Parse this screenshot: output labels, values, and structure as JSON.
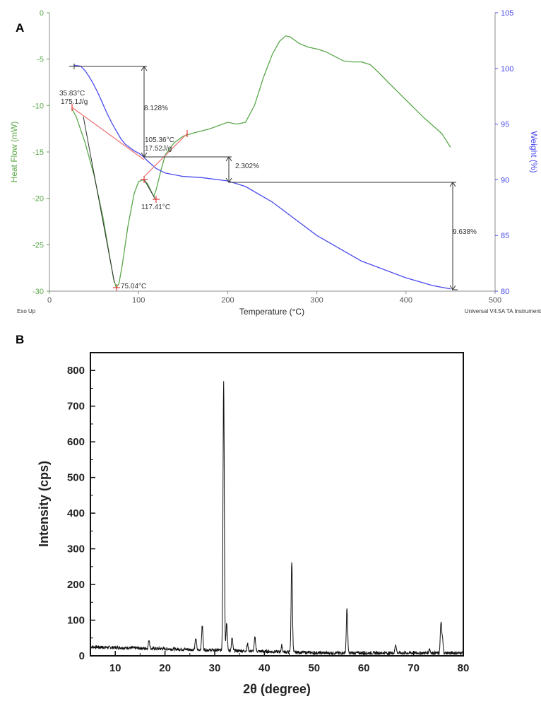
{
  "colors": {
    "heat_flow": "#5aa84a",
    "weight": "#4a4aee",
    "integration": "#f07070",
    "annotation": "#333333",
    "xrd": "#111111",
    "axis_a": "#8c8c8c"
  },
  "chart_data": [
    {
      "type": "line",
      "panel_label": "A",
      "xlabel": "Temperature (°C)",
      "ylabel_left": "Heat Flow (mW)",
      "ylabel_right": "Weight (%)",
      "xlim": [
        0,
        500
      ],
      "ylim_left": [
        -30,
        0
      ],
      "ylim_right": [
        80,
        105
      ],
      "x_ticks": [
        "0",
        "100",
        "200",
        "300",
        "400",
        "500"
      ],
      "y_left_ticks": [
        "0",
        "-5",
        "-10",
        "-15",
        "-20",
        "-25",
        "-30"
      ],
      "y_right_ticks": [
        "105",
        "100",
        "95",
        "90",
        "85",
        "80"
      ],
      "footer_left": "Exo Up",
      "footer_right": "Universal V4.5A TA Instrument",
      "series": [
        {
          "axis": "left",
          "x": [
            25,
            30,
            40,
            50,
            60,
            68,
            72,
            75,
            78,
            82,
            88,
            95,
            100,
            105,
            110,
            115,
            117,
            120,
            125,
            130,
            140,
            150,
            160,
            180,
            200,
            210,
            220,
            230,
            240,
            250,
            258,
            265,
            270,
            280,
            290,
            300,
            310,
            320,
            330,
            340,
            350,
            360,
            370,
            380,
            400,
            420,
            440,
            450
          ],
          "values": [
            -10.3,
            -11.2,
            -14,
            -17.5,
            -22,
            -26.5,
            -28.7,
            -29.6,
            -29.2,
            -27,
            -23,
            -19.5,
            -18.2,
            -18,
            -18.4,
            -19.4,
            -19.8,
            -19,
            -17,
            -15.3,
            -14,
            -13.3,
            -13,
            -12.5,
            -11.8,
            -12,
            -11.8,
            -10,
            -7,
            -4.5,
            -3.1,
            -2.5,
            -2.6,
            -3.3,
            -3.7,
            -3.9,
            -4.2,
            -4.7,
            -5.2,
            -5.3,
            -5.3,
            -5.6,
            -6.5,
            -7.5,
            -9.4,
            -11.3,
            -13,
            -14.5
          ]
        },
        {
          "axis": "right",
          "x": [
            27,
            35,
            40,
            45,
            50,
            55,
            60,
            65,
            70,
            75,
            80,
            85,
            90,
            95,
            100,
            105,
            110,
            120,
            130,
            150,
            170,
            200,
            220,
            250,
            300,
            350,
            400,
            430,
            450
          ],
          "values": [
            100.3,
            100.2,
            99.8,
            99.2,
            98.5,
            97.7,
            96.8,
            95.9,
            95.1,
            94.4,
            93.7,
            93.2,
            92.9,
            92.6,
            92.4,
            92.1,
            91.7,
            91,
            90.6,
            90.3,
            90.2,
            89.9,
            89.4,
            88,
            85,
            82.7,
            81.2,
            80.5,
            80.2
          ]
        }
      ],
      "annotations": [
        "35.83°C",
        "175.1J/g",
        "75.04°C",
        "105.36°C",
        "17.52J/g",
        "117.41°C",
        "8.128%",
        "2.302%",
        "9.638%"
      ]
    },
    {
      "type": "line",
      "panel_label": "B",
      "xlabel": "2θ (degree)",
      "ylabel": "Intensity (cps)",
      "xlim": [
        5,
        80
      ],
      "ylim": [
        0,
        850
      ],
      "x_ticks": [
        "10",
        "20",
        "30",
        "40",
        "50",
        "60",
        "70",
        "80"
      ],
      "y_ticks": [
        "0",
        "100",
        "200",
        "300",
        "400",
        "500",
        "600",
        "700",
        "800"
      ],
      "baseline_start": 25,
      "baseline_end": 8,
      "peaks": [
        {
          "x": 16.8,
          "y": 34
        },
        {
          "x": 26.2,
          "y": 42
        },
        {
          "x": 27.5,
          "y": 78
        },
        {
          "x": 31.8,
          "y": 768
        },
        {
          "x": 32.4,
          "y": 88
        },
        {
          "x": 33.5,
          "y": 45
        },
        {
          "x": 36.6,
          "y": 30
        },
        {
          "x": 38.1,
          "y": 50
        },
        {
          "x": 43.5,
          "y": 28
        },
        {
          "x": 45.5,
          "y": 265
        },
        {
          "x": 56.6,
          "y": 135
        },
        {
          "x": 66.4,
          "y": 35
        },
        {
          "x": 73.2,
          "y": 22
        },
        {
          "x": 75.5,
          "y": 95
        },
        {
          "x": 75.8,
          "y": 50
        }
      ]
    }
  ]
}
